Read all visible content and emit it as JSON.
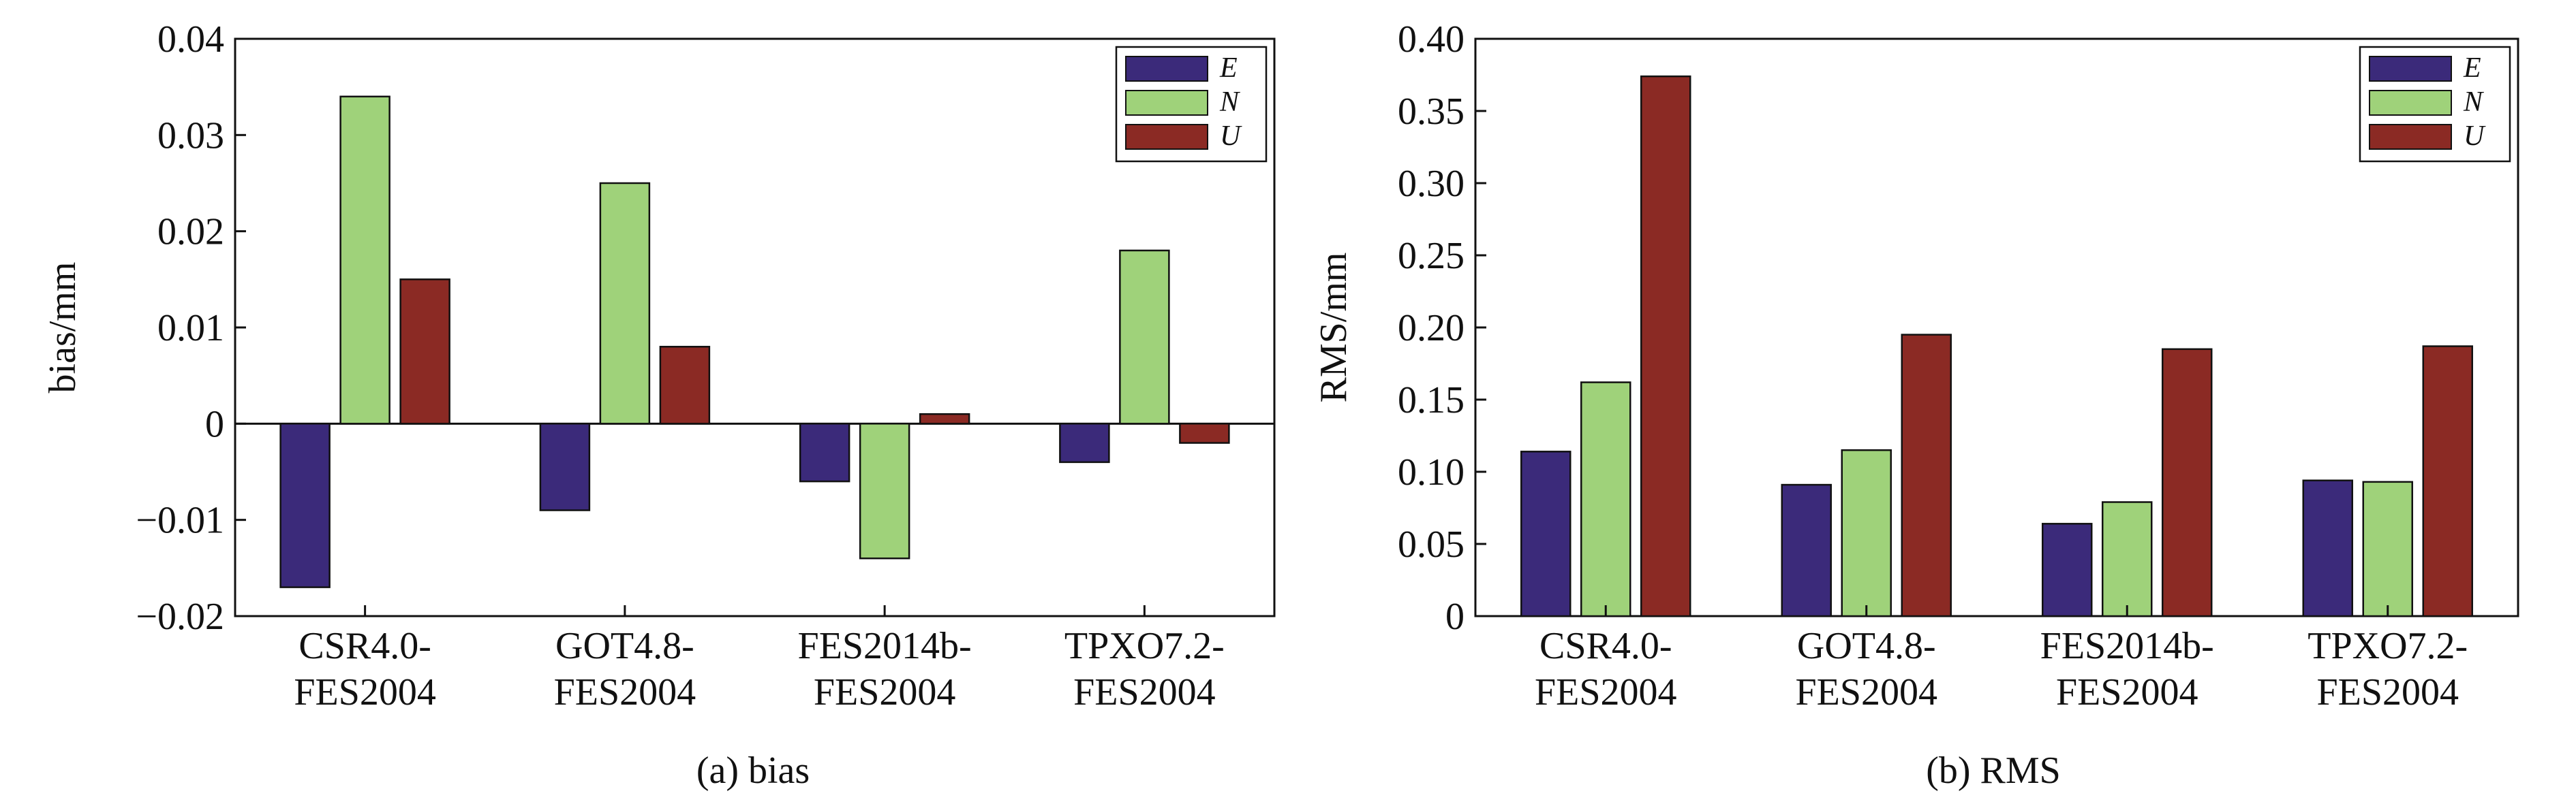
{
  "chart_data": [
    {
      "type": "bar",
      "caption": "(a)  bias",
      "ylabel": "bias/mm",
      "ylim": [
        -0.02,
        0.04
      ],
      "yticks": [
        -0.02,
        -0.01,
        0,
        0.01,
        0.02,
        0.03,
        0.04
      ],
      "ytick_labels": [
        "−0.02",
        "−0.01",
        "0",
        "0.01",
        "0.02",
        "0.03",
        "0.04"
      ],
      "categories": [
        [
          "CSR4.0-",
          "FES2004"
        ],
        [
          "GOT4.8-",
          "FES2004"
        ],
        [
          "FES2014b-",
          "FES2004"
        ],
        [
          "TPXO7.2-",
          "FES2004"
        ]
      ],
      "legend_position": "top-right",
      "series": [
        {
          "name": "E",
          "color": "#3b2a7a",
          "values": [
            -0.017,
            -0.009,
            -0.006,
            -0.004
          ]
        },
        {
          "name": "N",
          "color": "#9fd27a",
          "values": [
            0.034,
            0.025,
            -0.014,
            0.018
          ]
        },
        {
          "name": "U",
          "color": "#8b2a24",
          "values": [
            0.015,
            0.008,
            0.001,
            -0.002
          ]
        }
      ]
    },
    {
      "type": "bar",
      "caption": "(b)  RMS",
      "ylabel": "RMS/mm",
      "ylim": [
        0,
        0.4
      ],
      "yticks": [
        0,
        0.05,
        0.1,
        0.15,
        0.2,
        0.25,
        0.3,
        0.35,
        0.4
      ],
      "ytick_labels": [
        "0",
        "0.05",
        "0.10",
        "0.15",
        "0.20",
        "0.25",
        "0.30",
        "0.35",
        "0.40"
      ],
      "categories": [
        [
          "CSR4.0-",
          "FES2004"
        ],
        [
          "GOT4.8-",
          "FES2004"
        ],
        [
          "FES2014b-",
          "FES2004"
        ],
        [
          "TPXO7.2-",
          "FES2004"
        ]
      ],
      "legend_position": "top-right",
      "series": [
        {
          "name": "E",
          "color": "#3b2a7a",
          "values": [
            0.114,
            0.091,
            0.064,
            0.094
          ]
        },
        {
          "name": "N",
          "color": "#9fd27a",
          "values": [
            0.162,
            0.115,
            0.079,
            0.093
          ]
        },
        {
          "name": "U",
          "color": "#8b2a24",
          "values": [
            0.374,
            0.195,
            0.185,
            0.187
          ]
        }
      ]
    }
  ]
}
